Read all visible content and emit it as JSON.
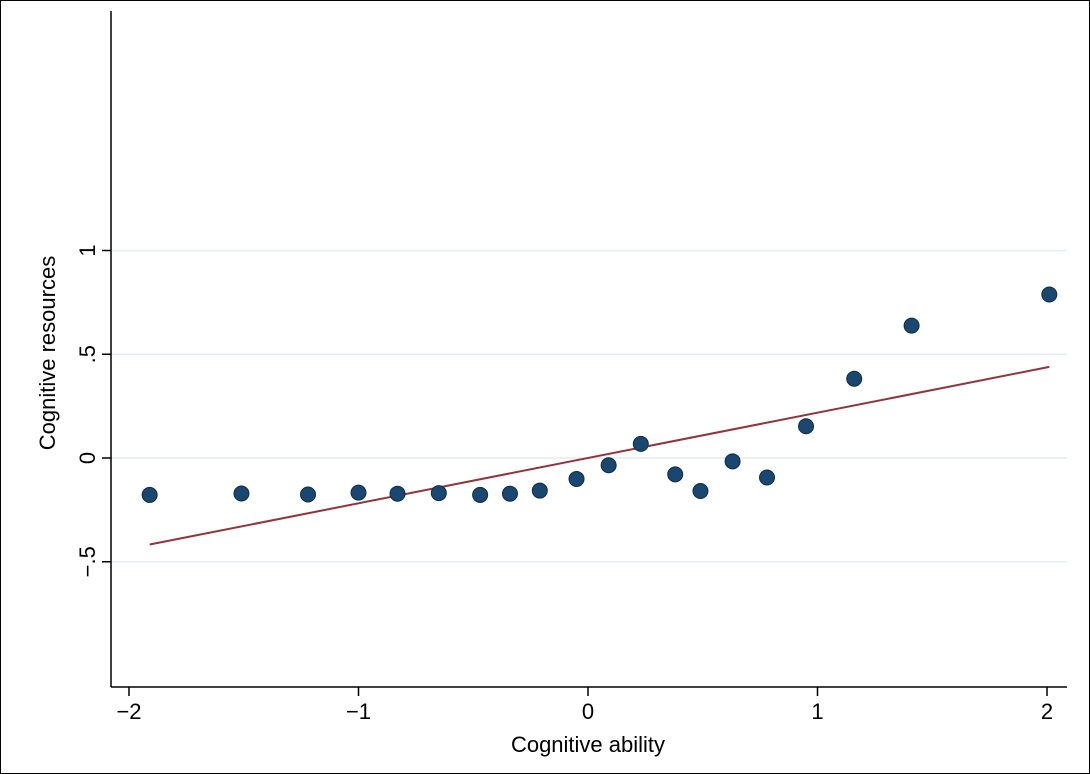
{
  "chart_data": {
    "type": "scatter",
    "title": "",
    "xlabel": "Cognitive ability",
    "ylabel": "Cognitive resources",
    "xlim": [
      -2.08,
      2.08
    ],
    "ylim": [
      -0.53,
      1.05
    ],
    "x_ticks": [
      {
        "value": -2,
        "label": "−2"
      },
      {
        "value": -1,
        "label": "−1"
      },
      {
        "value": 0,
        "label": "0"
      },
      {
        "value": 1,
        "label": "1"
      },
      {
        "value": 2,
        "label": "2"
      }
    ],
    "y_ticks": [
      {
        "value": -0.5,
        "label": "−.5"
      },
      {
        "value": 0,
        "label": "0"
      },
      {
        "value": 0.5,
        "label": ".5"
      },
      {
        "value": 1,
        "label": "1"
      }
    ],
    "grid": "horizontal",
    "series": [
      {
        "kind": "points",
        "color": "#1a476f",
        "points": [
          {
            "x": -1.91,
            "y": -0.178
          },
          {
            "x": -1.51,
            "y": -0.171
          },
          {
            "x": -1.22,
            "y": -0.176
          },
          {
            "x": -1.0,
            "y": -0.167
          },
          {
            "x": -0.83,
            "y": -0.172
          },
          {
            "x": -0.65,
            "y": -0.169
          },
          {
            "x": -0.47,
            "y": -0.178
          },
          {
            "x": -0.34,
            "y": -0.172
          },
          {
            "x": -0.21,
            "y": -0.157
          },
          {
            "x": -0.05,
            "y": -0.101
          },
          {
            "x": 0.09,
            "y": -0.035
          },
          {
            "x": 0.23,
            "y": 0.068
          },
          {
            "x": 0.38,
            "y": -0.079
          },
          {
            "x": 0.49,
            "y": -0.159
          },
          {
            "x": 0.63,
            "y": -0.016
          },
          {
            "x": 0.78,
            "y": -0.094
          },
          {
            "x": 0.95,
            "y": 0.153
          },
          {
            "x": 1.16,
            "y": 0.382
          },
          {
            "x": 1.41,
            "y": 0.638
          },
          {
            "x": 2.01,
            "y": 0.788
          }
        ]
      },
      {
        "kind": "fit-line",
        "color": "#90353b",
        "points": [
          {
            "x": -1.91,
            "y": -0.417
          },
          {
            "x": 2.01,
            "y": 0.439
          }
        ]
      }
    ]
  }
}
